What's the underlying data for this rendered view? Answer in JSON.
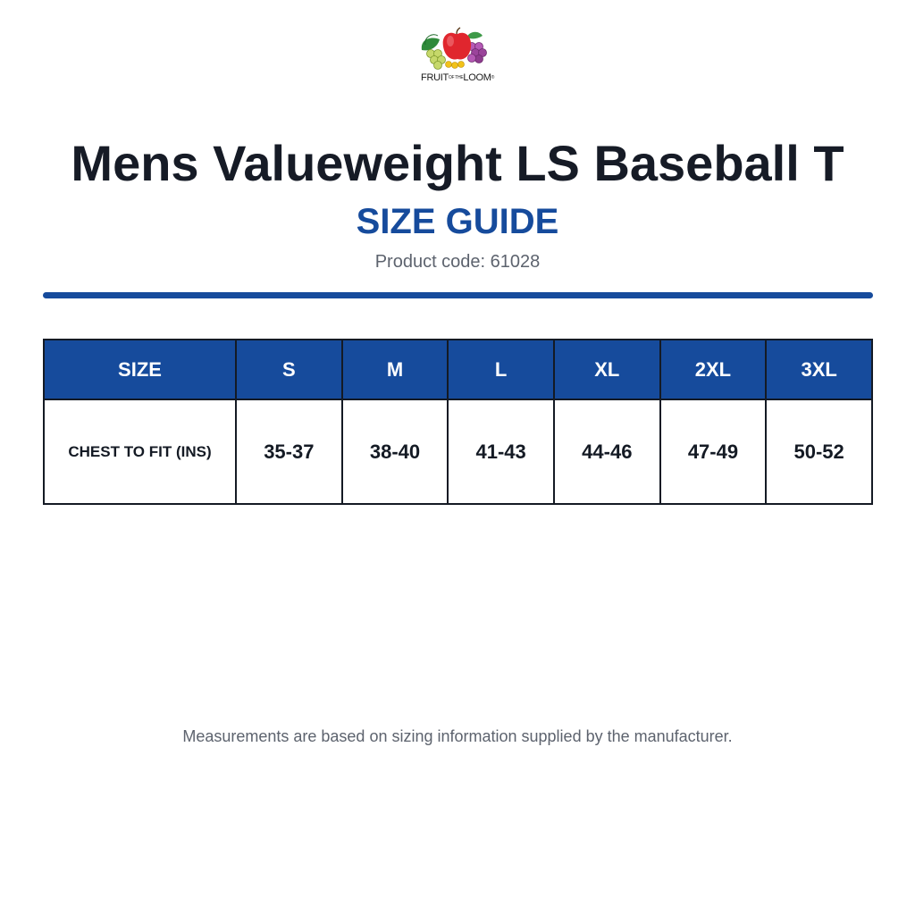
{
  "logo": {
    "text_left": "FRUIT",
    "text_small": "OF THE",
    "text_right": "LOOM",
    "trademark": "®",
    "colors": {
      "apple": "#e0262e",
      "grapes_purple": "#8e3c8e",
      "grapes_green": "#c6d86a",
      "leaf": "#2f8a3a",
      "currant": "#f2c21a"
    }
  },
  "header": {
    "title": "Mens Valueweight LS Baseball T",
    "subtitle": "SIZE GUIDE",
    "product_code": "Product code: 61028"
  },
  "colors": {
    "accent": "#164b9c",
    "text_dark": "#141a24",
    "text_muted": "#5d636e"
  },
  "table": {
    "header_label": "SIZE",
    "sizes": [
      "S",
      "M",
      "L",
      "XL",
      "2XL",
      "3XL"
    ],
    "rows": [
      {
        "label": "CHEST TO FIT (INS)",
        "values": [
          "35-37",
          "38-40",
          "41-43",
          "44-46",
          "47-49",
          "50-52"
        ]
      }
    ]
  },
  "footnote": "Measurements are based on sizing information supplied by the manufacturer."
}
